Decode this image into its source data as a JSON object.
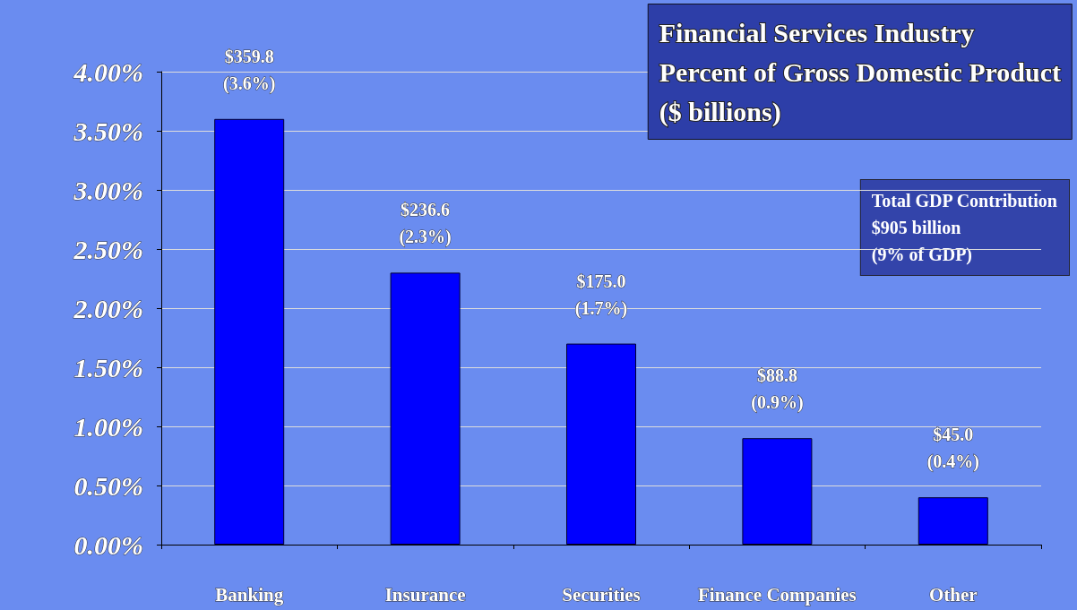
{
  "chart_data": {
    "type": "bar",
    "title": "Financial Services Industry\nPercent of Gross Domestic Product\n($ billions)",
    "categories": [
      "Banking",
      "Insurance",
      "Securities",
      "Finance Companies",
      "Other"
    ],
    "values": [
      3.6,
      2.3,
      1.7,
      0.9,
      0.4
    ],
    "value_labels": [
      "$359.8\n(3.6%)",
      "$236.6\n(2.3%)",
      "$175.0\n(1.7%)",
      "$88.8\n(0.9%)",
      "$45.0\n(0.4%)"
    ],
    "color": "#0000ff",
    "ylim": [
      0,
      4
    ],
    "yticks": [
      {
        "value": 0,
        "label": "0.00%"
      },
      {
        "value": 0.5,
        "label": "0.50%"
      },
      {
        "value": 1,
        "label": "1.00%"
      },
      {
        "value": 1.5,
        "label": "1.50%"
      },
      {
        "value": 2,
        "label": "2.00%"
      },
      {
        "value": 2.5,
        "label": "2.50%"
      },
      {
        "value": 3,
        "label": "3.00%"
      },
      {
        "value": 3.5,
        "label": "3.50%"
      },
      {
        "value": 4,
        "label": "4.00%"
      }
    ],
    "grid": true,
    "annotations": [
      "Total GDP Contribution\n$905 billion\n(9% of GDP)"
    ]
  }
}
